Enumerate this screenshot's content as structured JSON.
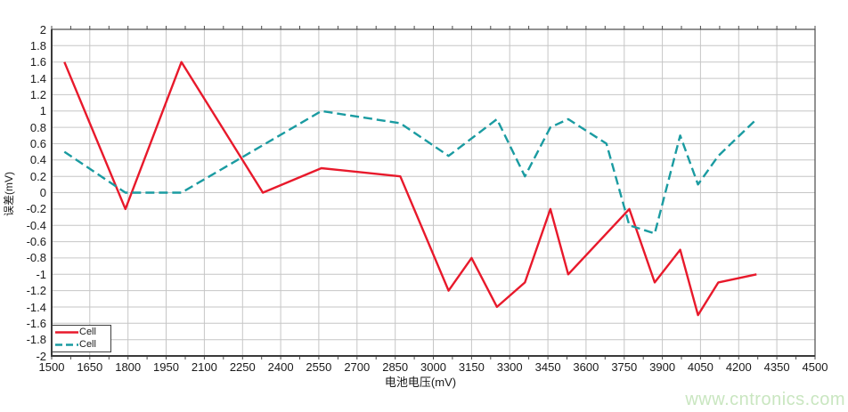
{
  "chart_data": {
    "type": "line",
    "title": "",
    "xlabel": "电池电压(mV)",
    "ylabel": "误差(mV)",
    "xlim": [
      1500,
      4500
    ],
    "x_tick_step": 150,
    "x_ticks": [
      1500,
      1650,
      1800,
      1950,
      2100,
      2250,
      2400,
      2550,
      2700,
      2850,
      3000,
      3150,
      3300,
      3450,
      3600,
      3750,
      3900,
      4050,
      4200,
      4350,
      4500
    ],
    "ylim": [
      -2,
      2
    ],
    "y_tick_step": 0.2,
    "y_tick_labels": [
      "2",
      "1.8",
      "1.6",
      "1.4",
      "1.2",
      "1",
      "0.8",
      "0.6",
      "0.4",
      "0.2",
      "0",
      "-0.2",
      "-0.4",
      "-0.6",
      "-0.8",
      "-1",
      "-1.2",
      "-1.4",
      "-1.6",
      "-1.8",
      "-2"
    ],
    "grid": true,
    "legend_position": "bottom-left",
    "series": [
      {
        "name": "Cell",
        "color": "#e8192b",
        "line_style": "solid",
        "x": [
          1550,
          1790,
          2010,
          2330,
          2560,
          2870,
          3060,
          3150,
          3250,
          3360,
          3460,
          3530,
          3770,
          3870,
          3970,
          4040,
          4120,
          4270
        ],
        "y": [
          1.6,
          -0.2,
          1.6,
          0.0,
          0.3,
          0.2,
          -1.2,
          -0.8,
          -1.4,
          -1.1,
          -0.2,
          -1.0,
          -0.2,
          -1.1,
          -0.7,
          -1.5,
          -1.1,
          -1.0
        ]
      },
      {
        "name": "Cell",
        "color": "#1a9ba1",
        "line_style": "dashed",
        "x": [
          1550,
          1790,
          2010,
          2560,
          2870,
          3060,
          3250,
          3360,
          3460,
          3530,
          3680,
          3770,
          3870,
          3970,
          4040,
          4120,
          4270
        ],
        "y": [
          0.5,
          0.0,
          0.0,
          1.0,
          0.85,
          0.45,
          0.9,
          0.2,
          0.8,
          0.9,
          0.6,
          -0.4,
          -0.5,
          0.7,
          0.1,
          0.45,
          0.9
        ]
      }
    ]
  },
  "watermark": {
    "text": "www.cntronics.com",
    "color": "#c9e6c0"
  },
  "style": {
    "grid_color": "#c6c6c6",
    "axis_color": "#4a4a4a",
    "background": "#ffffff",
    "text_color": "#1a1a1a"
  }
}
